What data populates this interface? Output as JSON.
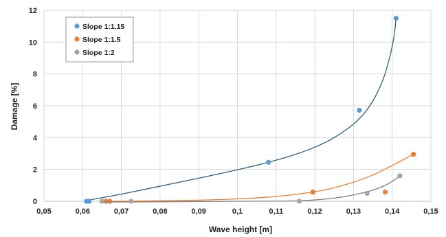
{
  "chart_data": {
    "type": "scatter",
    "xlabel": "Wave height [m]",
    "ylabel": "Damage [%]",
    "xlim": [
      0.05,
      0.15
    ],
    "ylim": [
      0,
      12
    ],
    "x_ticks": [
      "0,05",
      "0,06",
      "0,07",
      "0,08",
      "0,09",
      "0,1",
      "0,11",
      "0,12",
      "0,13",
      "0,14",
      "0,15"
    ],
    "y_ticks": [
      "0",
      "2",
      "4",
      "6",
      "8",
      "10",
      "12"
    ],
    "grid": true,
    "legend_position": "top-left",
    "series": [
      {
        "name": "Slope 1:1.15",
        "color": "#5b9bd5",
        "line_color": "#2e5f7f",
        "points": [
          [
            0.061,
            0.0
          ],
          [
            0.0617,
            0.0
          ],
          [
            0.108,
            2.45
          ],
          [
            0.1315,
            5.72
          ],
          [
            0.141,
            11.5
          ]
        ],
        "trend": [
          [
            0.061,
            0.05
          ],
          [
            0.07,
            0.45
          ],
          [
            0.08,
            0.95
          ],
          [
            0.09,
            1.45
          ],
          [
            0.1,
            1.98
          ],
          [
            0.108,
            2.45
          ],
          [
            0.115,
            2.95
          ],
          [
            0.12,
            3.4
          ],
          [
            0.125,
            4.0
          ],
          [
            0.13,
            4.85
          ],
          [
            0.1335,
            5.75
          ],
          [
            0.136,
            6.75
          ],
          [
            0.138,
            7.9
          ],
          [
            0.1395,
            9.2
          ],
          [
            0.1405,
            10.4
          ],
          [
            0.141,
            11.5
          ]
        ]
      },
      {
        "name": "Slope 1:1.5",
        "color": "#ed7d31",
        "line_color": "#ed7d31",
        "points": [
          [
            0.066,
            0.0
          ],
          [
            0.067,
            0.0
          ],
          [
            0.1195,
            0.58
          ],
          [
            0.1382,
            0.58
          ],
          [
            0.1455,
            2.95
          ]
        ],
        "trend": [
          [
            0.066,
            0.0
          ],
          [
            0.08,
            0.03
          ],
          [
            0.09,
            0.07
          ],
          [
            0.1,
            0.15
          ],
          [
            0.11,
            0.3
          ],
          [
            0.12,
            0.6
          ],
          [
            0.125,
            0.85
          ],
          [
            0.13,
            1.2
          ],
          [
            0.135,
            1.65
          ],
          [
            0.14,
            2.25
          ],
          [
            0.1455,
            2.95
          ]
        ]
      },
      {
        "name": "Slope 1:2",
        "color": "#a5a5a5",
        "line_color": "#808080",
        "points": [
          [
            0.065,
            0.0
          ],
          [
            0.0725,
            0.0
          ],
          [
            0.116,
            0.0
          ],
          [
            0.1335,
            0.5
          ],
          [
            0.142,
            1.6
          ]
        ],
        "trend": [
          [
            0.065,
            -0.05
          ],
          [
            0.08,
            -0.03
          ],
          [
            0.1,
            0.0
          ],
          [
            0.116,
            0.03
          ],
          [
            0.125,
            0.2
          ],
          [
            0.13,
            0.4
          ],
          [
            0.135,
            0.7
          ],
          [
            0.139,
            1.1
          ],
          [
            0.142,
            1.6
          ]
        ]
      }
    ]
  }
}
